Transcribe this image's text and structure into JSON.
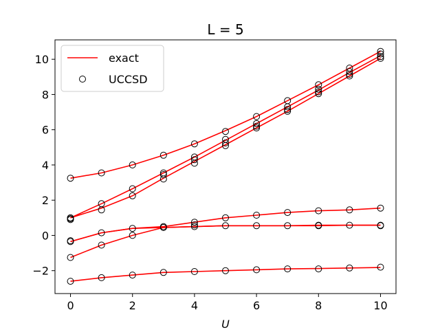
{
  "chart_data": {
    "type": "line",
    "title": "L = 5",
    "xlabel": "U",
    "ylabel": "",
    "xlim": [
      -0.5,
      10.5
    ],
    "ylim": [
      -3.3,
      11.1
    ],
    "xticks": [
      0,
      2,
      4,
      6,
      8,
      10
    ],
    "yticks": [
      -2,
      0,
      2,
      4,
      6,
      8,
      10
    ],
    "xtick_labels": [
      "0",
      "2",
      "4",
      "6",
      "8",
      "10"
    ],
    "ytick_labels": [
      "−2",
      "0",
      "2",
      "4",
      "6",
      "8",
      "10"
    ],
    "grid": false,
    "legend": {
      "position": "top-left",
      "entries": [
        "exact",
        "UCCSD"
      ]
    },
    "colors": {
      "exact": "#ff0000",
      "uccsd": "#000000"
    },
    "x": [
      0,
      1,
      2,
      3,
      4,
      5,
      6,
      7,
      8,
      9,
      10
    ],
    "exact_lines": [
      [
        3.25,
        3.55,
        4.0,
        4.55,
        5.2,
        5.95,
        6.75,
        7.65,
        8.55,
        9.5,
        10.45
      ],
      [
        1.0,
        1.8,
        2.65,
        3.55,
        4.45,
        5.4,
        6.35,
        7.3,
        8.25,
        9.25,
        10.2
      ],
      [
        1.0,
        1.55,
        2.25,
        3.25,
        4.2,
        5.15,
        6.1,
        7.05,
        8.05,
        9.05,
        10.05
      ],
      [
        -0.35,
        0.15,
        0.4,
        0.5,
        0.75,
        1.0,
        1.15,
        1.3,
        1.4,
        1.45,
        1.55
      ],
      [
        -0.35,
        0.15,
        0.4,
        0.45,
        0.5,
        0.55,
        0.55,
        0.55,
        0.55,
        0.58,
        0.58
      ],
      [
        -1.25,
        -0.55,
        0.0,
        0.45,
        0.5,
        0.55,
        0.55,
        0.55,
        0.58,
        0.58,
        0.58
      ],
      [
        -2.6,
        -2.4,
        -2.25,
        -2.1,
        -2.05,
        -2.0,
        -1.95,
        -1.9,
        -1.88,
        -1.85,
        -1.82
      ]
    ],
    "uccsd_points": [
      [
        0,
        3.25
      ],
      [
        1,
        3.55
      ],
      [
        2,
        4.0
      ],
      [
        3,
        4.55
      ],
      [
        4,
        5.2
      ],
      [
        5,
        5.9
      ],
      [
        6,
        6.75
      ],
      [
        7,
        7.65
      ],
      [
        8,
        8.55
      ],
      [
        9,
        9.5
      ],
      [
        10,
        10.45
      ],
      [
        0,
        1.0
      ],
      [
        1,
        1.8
      ],
      [
        2,
        2.65
      ],
      [
        3,
        3.55
      ],
      [
        4,
        4.45
      ],
      [
        5,
        5.45
      ],
      [
        6,
        6.35
      ],
      [
        7,
        7.3
      ],
      [
        8,
        8.3
      ],
      [
        9,
        9.3
      ],
      [
        10,
        10.3
      ],
      [
        0,
        0.95
      ],
      [
        1,
        1.45
      ],
      [
        2,
        2.25
      ],
      [
        3,
        3.2
      ],
      [
        4,
        4.3
      ],
      [
        5,
        5.25
      ],
      [
        6,
        6.2
      ],
      [
        7,
        7.15
      ],
      [
        8,
        8.15
      ],
      [
        9,
        9.15
      ],
      [
        10,
        10.15
      ],
      [
        0,
        0.9
      ],
      [
        3,
        3.45
      ],
      [
        4,
        4.1
      ],
      [
        5,
        5.1
      ],
      [
        6,
        6.1
      ],
      [
        7,
        7.05
      ],
      [
        8,
        8.05
      ],
      [
        9,
        9.05
      ],
      [
        10,
        10.05
      ],
      [
        0,
        -0.3
      ],
      [
        1,
        0.15
      ],
      [
        2,
        0.4
      ],
      [
        3,
        0.5
      ],
      [
        4,
        0.75
      ],
      [
        5,
        1.0
      ],
      [
        6,
        1.15
      ],
      [
        7,
        1.3
      ],
      [
        8,
        1.4
      ],
      [
        9,
        1.45
      ],
      [
        10,
        1.55
      ],
      [
        0,
        -0.35
      ],
      [
        3,
        0.45
      ],
      [
        4,
        0.5
      ],
      [
        5,
        0.55
      ],
      [
        6,
        0.55
      ],
      [
        7,
        0.55
      ],
      [
        8,
        0.58
      ],
      [
        9,
        0.58
      ],
      [
        10,
        0.58
      ],
      [
        0,
        -1.25
      ],
      [
        1,
        -0.55
      ],
      [
        2,
        0.0
      ],
      [
        4,
        0.6
      ],
      [
        8,
        0.55
      ],
      [
        10,
        0.55
      ],
      [
        0,
        -2.6
      ],
      [
        1,
        -2.4
      ],
      [
        2,
        -2.25
      ],
      [
        3,
        -2.1
      ],
      [
        4,
        -2.05
      ],
      [
        5,
        -2.0
      ],
      [
        6,
        -1.95
      ],
      [
        7,
        -1.9
      ],
      [
        8,
        -1.9
      ],
      [
        9,
        -1.85
      ],
      [
        10,
        -1.8
      ]
    ]
  }
}
